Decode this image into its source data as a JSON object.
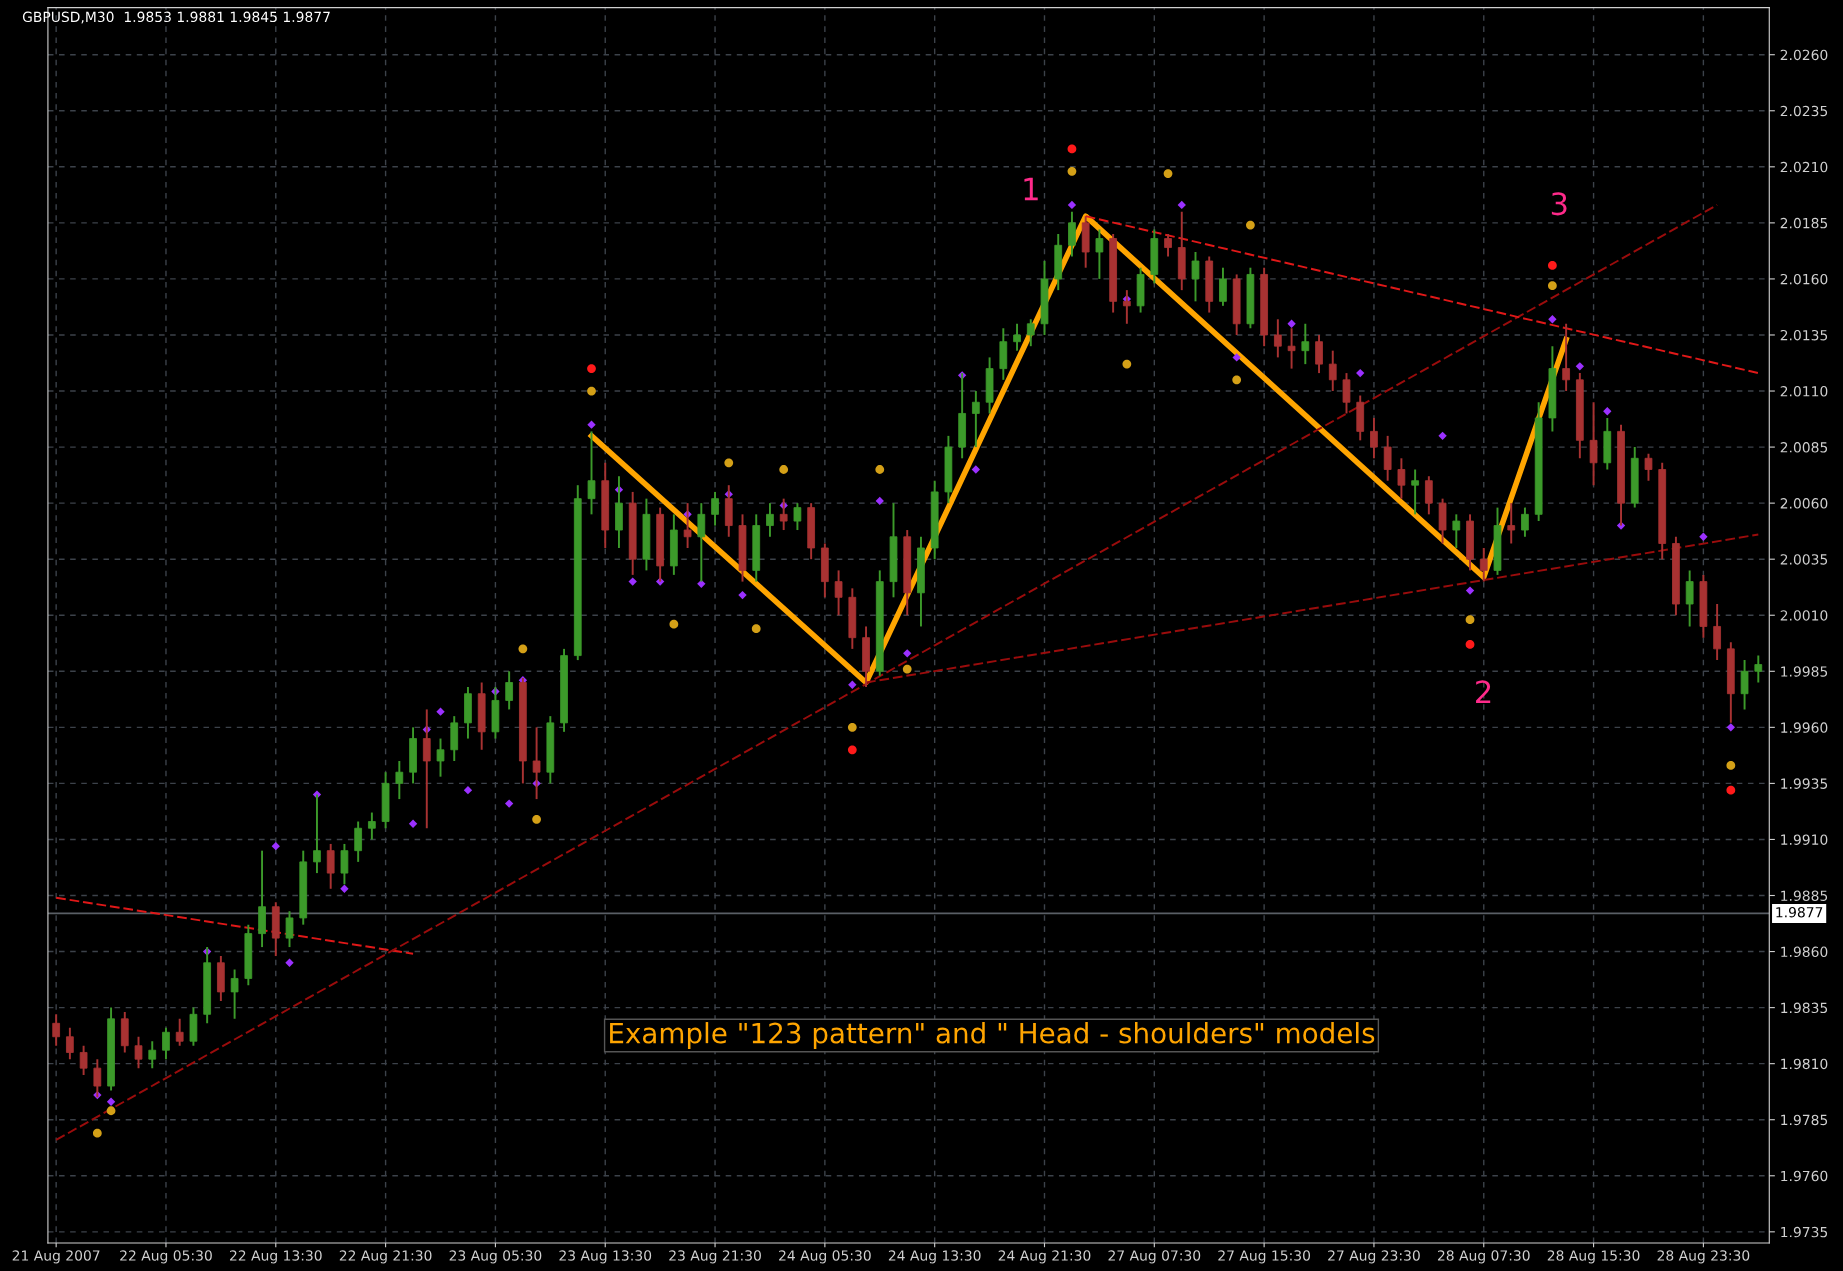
{
  "chart_data": {
    "type": "candlestick",
    "categories": [
      "21 Aug 2007",
      null,
      null,
      null,
      null,
      null,
      null,
      null,
      "22 Aug 05:30",
      null,
      null,
      null,
      null,
      null,
      null,
      null,
      "22 Aug 13:30",
      null,
      null,
      null,
      null,
      null,
      null,
      null,
      "22 Aug 21:30",
      null,
      null,
      null,
      null,
      null,
      null,
      null,
      "23 Aug 05:30",
      null,
      null,
      null,
      null,
      null,
      null,
      null,
      "23 Aug 13:30",
      null,
      null,
      null,
      null,
      null,
      null,
      null,
      "23 Aug 21:30",
      null,
      null,
      null,
      null,
      null,
      null,
      null,
      "24 Aug 05:30",
      null,
      null,
      null,
      null,
      null,
      null,
      null,
      "24 Aug 13:30",
      null,
      null,
      null,
      null,
      null,
      null,
      null,
      "24 Aug 21:30",
      null,
      null,
      null,
      null,
      null,
      null,
      null,
      "27 Aug 07:30",
      null,
      null,
      null,
      null,
      null,
      null,
      null,
      "27 Aug 15:30",
      null,
      null,
      null,
      null,
      null,
      null,
      null,
      "27 Aug 23:30",
      null,
      null,
      null,
      null,
      null,
      null,
      null,
      "28 Aug 07:30",
      null,
      null,
      null,
      null,
      null,
      null,
      null,
      "28 Aug 15:30",
      null,
      null,
      null,
      null,
      null,
      null,
      null,
      "28 Aug 23:30",
      null,
      null,
      null,
      null
    ],
    "ohlc": [
      [
        1.9828,
        1.9832,
        1.9818,
        1.9822
      ],
      [
        1.9822,
        1.9826,
        1.9812,
        1.9815
      ],
      [
        1.9815,
        1.9818,
        1.9805,
        1.9808
      ],
      [
        1.9808,
        1.9812,
        1.9795,
        1.98
      ],
      [
        1.98,
        1.9835,
        1.9798,
        1.983
      ],
      [
        1.983,
        1.9833,
        1.9815,
        1.9818
      ],
      [
        1.9818,
        1.9822,
        1.9808,
        1.9812
      ],
      [
        1.9812,
        1.982,
        1.9808,
        1.9816
      ],
      [
        1.9816,
        1.9826,
        1.9812,
        1.9824
      ],
      [
        1.9824,
        1.983,
        1.9818,
        1.982
      ],
      [
        1.982,
        1.9835,
        1.9818,
        1.9832
      ],
      [
        1.9832,
        1.9862,
        1.9828,
        1.9855
      ],
      [
        1.9855,
        1.9858,
        1.9838,
        1.9842
      ],
      [
        1.9842,
        1.9852,
        1.983,
        1.9848
      ],
      [
        1.9848,
        1.9872,
        1.9845,
        1.9868
      ],
      [
        1.9868,
        1.9905,
        1.9862,
        1.988
      ],
      [
        1.988,
        1.9882,
        1.9858,
        1.9866
      ],
      [
        1.9866,
        1.9878,
        1.9862,
        1.9875
      ],
      [
        1.9875,
        1.9905,
        1.9872,
        1.99
      ],
      [
        1.99,
        1.993,
        1.9895,
        1.9905
      ],
      [
        1.9905,
        1.9908,
        1.9888,
        1.9895
      ],
      [
        1.9895,
        1.9908,
        1.989,
        1.9905
      ],
      [
        1.9905,
        1.9918,
        1.99,
        1.9915
      ],
      [
        1.9915,
        1.9922,
        1.991,
        1.9918
      ],
      [
        1.9918,
        1.994,
        1.9915,
        1.9935
      ],
      [
        1.9935,
        1.9945,
        1.9928,
        1.994
      ],
      [
        1.994,
        1.996,
        1.9935,
        1.9955
      ],
      [
        1.9955,
        1.9968,
        1.9915,
        1.9945
      ],
      [
        1.9945,
        1.9955,
        1.9938,
        1.995
      ],
      [
        1.995,
        1.9965,
        1.9945,
        1.9962
      ],
      [
        1.9962,
        1.9978,
        1.9955,
        1.9975
      ],
      [
        1.9975,
        1.998,
        1.995,
        1.9958
      ],
      [
        1.9958,
        1.9978,
        1.9955,
        1.9972
      ],
      [
        1.9972,
        1.9985,
        1.9968,
        1.998
      ],
      [
        1.998,
        1.9982,
        1.9935,
        1.9945
      ],
      [
        1.9945,
        1.996,
        1.9928,
        1.994
      ],
      [
        1.994,
        1.9965,
        1.9935,
        1.9962
      ],
      [
        1.9962,
        1.9995,
        1.9958,
        1.9992
      ],
      [
        1.9992,
        2.0068,
        1.999,
        2.0062
      ],
      [
        2.0062,
        2.0092,
        2.0055,
        2.007
      ],
      [
        2.007,
        2.0078,
        2.004,
        2.0048
      ],
      [
        2.0048,
        2.0072,
        2.004,
        2.006
      ],
      [
        2.006,
        2.0065,
        2.0028,
        2.0035
      ],
      [
        2.0035,
        2.0062,
        2.003,
        2.0055
      ],
      [
        2.0055,
        2.0058,
        2.0025,
        2.0032
      ],
      [
        2.0032,
        2.0055,
        2.0028,
        2.0048
      ],
      [
        2.0048,
        2.006,
        2.004,
        2.0045
      ],
      [
        2.0045,
        2.006,
        2.0025,
        2.0055
      ],
      [
        2.0055,
        2.0065,
        2.005,
        2.0062
      ],
      [
        2.0062,
        2.0068,
        2.0045,
        2.005
      ],
      [
        2.005,
        2.0055,
        2.0025,
        2.003
      ],
      [
        2.003,
        2.0055,
        2.0025,
        2.005
      ],
      [
        2.005,
        2.006,
        2.0045,
        2.0055
      ],
      [
        2.0055,
        2.0062,
        2.0048,
        2.0052
      ],
      [
        2.0052,
        2.006,
        2.0048,
        2.0058
      ],
      [
        2.0058,
        2.006,
        2.0035,
        2.004
      ],
      [
        2.004,
        2.0042,
        2.0018,
        2.0025
      ],
      [
        2.0025,
        2.003,
        2.001,
        2.0018
      ],
      [
        2.0018,
        2.0022,
        1.9995,
        2.0
      ],
      [
        2.0,
        2.0005,
        1.9978,
        1.9985
      ],
      [
        1.9985,
        2.003,
        1.9983,
        2.0025
      ],
      [
        2.0025,
        2.006,
        2.0018,
        2.0045
      ],
      [
        2.0045,
        2.0048,
        2.001,
        2.002
      ],
      [
        2.002,
        2.0045,
        2.0005,
        2.004
      ],
      [
        2.004,
        2.007,
        2.0035,
        2.0065
      ],
      [
        2.0065,
        2.009,
        2.006,
        2.0085
      ],
      [
        2.0085,
        2.0118,
        2.008,
        2.01
      ],
      [
        2.01,
        2.011,
        2.0085,
        2.0105
      ],
      [
        2.0105,
        2.0125,
        2.01,
        2.012
      ],
      [
        2.012,
        2.0138,
        2.0115,
        2.0132
      ],
      [
        2.0132,
        2.014,
        2.0128,
        2.0135
      ],
      [
        2.0135,
        2.0142,
        2.013,
        2.014
      ],
      [
        2.014,
        2.0168,
        2.0135,
        2.016
      ],
      [
        2.016,
        2.018,
        2.0155,
        2.0175
      ],
      [
        2.0175,
        2.019,
        2.017,
        2.0185
      ],
      [
        2.0185,
        2.0188,
        2.0165,
        2.0172
      ],
      [
        2.0172,
        2.0182,
        2.016,
        2.0178
      ],
      [
        2.0178,
        2.018,
        2.0145,
        2.015
      ],
      [
        2.015,
        2.0155,
        2.014,
        2.0148
      ],
      [
        2.0148,
        2.0165,
        2.0145,
        2.0162
      ],
      [
        2.0162,
        2.0182,
        2.0158,
        2.0178
      ],
      [
        2.0178,
        2.018,
        2.017,
        2.0174
      ],
      [
        2.0174,
        2.019,
        2.0155,
        2.016
      ],
      [
        2.016,
        2.0172,
        2.015,
        2.0168
      ],
      [
        2.0168,
        2.017,
        2.0145,
        2.015
      ],
      [
        2.015,
        2.0165,
        2.0148,
        2.016
      ],
      [
        2.016,
        2.0162,
        2.0135,
        2.014
      ],
      [
        2.014,
        2.0165,
        2.0138,
        2.0162
      ],
      [
        2.0162,
        2.0165,
        2.013,
        2.0135
      ],
      [
        2.0135,
        2.0142,
        2.0125,
        2.013
      ],
      [
        2.013,
        2.0138,
        2.012,
        2.0128
      ],
      [
        2.0128,
        2.014,
        2.0122,
        2.0132
      ],
      [
        2.0132,
        2.0135,
        2.0118,
        2.0122
      ],
      [
        2.0122,
        2.0128,
        2.011,
        2.0115
      ],
      [
        2.0115,
        2.0118,
        2.01,
        2.0105
      ],
      [
        2.0105,
        2.0108,
        2.0088,
        2.0092
      ],
      [
        2.0092,
        2.0098,
        2.008,
        2.0085
      ],
      [
        2.0085,
        2.009,
        2.007,
        2.0075
      ],
      [
        2.0075,
        2.008,
        2.0062,
        2.0068
      ],
      [
        2.0068,
        2.0075,
        2.0055,
        2.007
      ],
      [
        2.007,
        2.0072,
        2.0055,
        2.006
      ],
      [
        2.006,
        2.0062,
        2.0042,
        2.0048
      ],
      [
        2.0048,
        2.0055,
        2.004,
        2.0052
      ],
      [
        2.0052,
        2.0055,
        2.003,
        2.0035
      ],
      [
        2.0035,
        2.004,
        2.0025,
        2.003
      ],
      [
        2.003,
        2.0058,
        2.0028,
        2.005
      ],
      [
        2.005,
        2.006,
        2.0042,
        2.0048
      ],
      [
        2.0048,
        2.0058,
        2.0045,
        2.0055
      ],
      [
        2.0055,
        2.0105,
        2.0052,
        2.0098
      ],
      [
        2.0098,
        2.013,
        2.0092,
        2.012
      ],
      [
        2.012,
        2.014,
        2.011,
        2.0115
      ],
      [
        2.0115,
        2.0118,
        2.008,
        2.0088
      ],
      [
        2.0088,
        2.0105,
        2.0068,
        2.0078
      ],
      [
        2.0078,
        2.0098,
        2.0075,
        2.0092
      ],
      [
        2.0092,
        2.0095,
        2.005,
        2.006
      ],
      [
        2.006,
        2.0085,
        2.0058,
        2.008
      ],
      [
        2.008,
        2.0082,
        2.007,
        2.0075
      ],
      [
        2.0075,
        2.0078,
        2.0035,
        2.0042
      ],
      [
        2.0042,
        2.0045,
        2.001,
        2.0015
      ],
      [
        2.0015,
        2.003,
        2.0005,
        2.0025
      ],
      [
        2.0025,
        2.0028,
        2.0,
        2.0005
      ],
      [
        2.0005,
        2.0015,
        1.999,
        1.9995
      ],
      [
        1.9995,
        1.9998,
        1.9962,
        1.9975
      ],
      [
        1.9975,
        1.999,
        1.9968,
        1.9985
      ],
      [
        1.9985,
        1.9992,
        1.998,
        1.9988
      ]
    ],
    "colors": [
      "#a83232",
      "#a83232",
      "#a83232",
      "#a83232",
      "#3c9a2a",
      "#a83232",
      "#a83232",
      "#3c9a2a",
      "#3c9a2a",
      "#a83232",
      "#3c9a2a",
      "#3c9a2a",
      "#a83232",
      "#3c9a2a",
      "#3c9a2a",
      "#3c9a2a",
      "#a83232",
      "#3c9a2a",
      "#3c9a2a",
      "#3c9a2a",
      "#a83232",
      "#3c9a2a",
      "#3c9a2a",
      "#3c9a2a",
      "#3c9a2a",
      "#3c9a2a",
      "#3c9a2a",
      "#a83232",
      "#3c9a2a",
      "#3c9a2a",
      "#3c9a2a",
      "#a83232",
      "#3c9a2a",
      "#3c9a2a",
      "#a83232",
      "#a83232",
      "#3c9a2a",
      "#3c9a2a",
      "#3c9a2a",
      "#3c9a2a",
      "#a83232",
      "#3c9a2a",
      "#a83232",
      "#3c9a2a",
      "#a83232",
      "#3c9a2a",
      "#a83232",
      "#3c9a2a",
      "#3c9a2a",
      "#a83232",
      "#a83232",
      "#3c9a2a",
      "#3c9a2a",
      "#a83232",
      "#3c9a2a",
      "#a83232",
      "#a83232",
      "#a83232",
      "#a83232",
      "#a83232",
      "#3c9a2a",
      "#3c9a2a",
      "#a83232",
      "#3c9a2a",
      "#3c9a2a",
      "#3c9a2a",
      "#3c9a2a",
      "#3c9a2a",
      "#3c9a2a",
      "#3c9a2a",
      "#3c9a2a",
      "#3c9a2a",
      "#3c9a2a",
      "#3c9a2a",
      "#3c9a2a",
      "#a83232",
      "#3c9a2a",
      "#a83232",
      "#a83232",
      "#3c9a2a",
      "#3c9a2a",
      "#a83232",
      "#a83232",
      "#3c9a2a",
      "#a83232",
      "#3c9a2a",
      "#a83232",
      "#3c9a2a",
      "#a83232",
      "#a83232",
      "#a83232",
      "#3c9a2a",
      "#a83232",
      "#a83232",
      "#a83232",
      "#a83232",
      "#a83232",
      "#a83232",
      "#a83232",
      "#3c9a2a",
      "#a83232",
      "#a83232",
      "#3c9a2a",
      "#a83232",
      "#a83232",
      "#3c9a2a",
      "#a83232",
      "#3c9a2a",
      "#3c9a2a",
      "#3c9a2a",
      "#a83232",
      "#a83232",
      "#a83232",
      "#3c9a2a",
      "#a83232",
      "#3c9a2a",
      "#a83232",
      "#a83232",
      "#a83232",
      "#3c9a2a",
      "#a83232",
      "#a83232",
      "#a83232",
      "#3c9a2a",
      "#3c9a2a"
    ],
    "series": [
      {
        "type": "line",
        "color": "#ffa500",
        "line_style": "solid",
        "marker": "none",
        "values": [
          null,
          null,
          null,
          null,
          null,
          null,
          null,
          null,
          null,
          null,
          null,
          null,
          null,
          null,
          null,
          null,
          null,
          null,
          null,
          null,
          null,
          null,
          null,
          null,
          null,
          null,
          null,
          null,
          null,
          null,
          null,
          null,
          null,
          null,
          null,
          null,
          null,
          null,
          null,
          2.009,
          null,
          null,
          null,
          null,
          null,
          null,
          null,
          null,
          null,
          null,
          null,
          null,
          null,
          null,
          null,
          null,
          null,
          null,
          null,
          1.998,
          null,
          null,
          null,
          null,
          null,
          null,
          null,
          null,
          null,
          null,
          null,
          null,
          null,
          null,
          null,
          2.0188,
          null,
          null,
          null,
          null,
          null,
          null,
          null,
          null,
          null,
          null,
          null,
          null,
          null,
          null,
          null,
          null,
          null,
          null,
          null,
          null,
          null,
          null,
          null,
          null,
          null,
          null,
          null,
          null,
          2.0027,
          null,
          null,
          null,
          null,
          null,
          2.0133,
          null,
          null,
          null,
          null,
          null,
          null,
          null,
          null,
          null,
          null,
          null,
          null,
          null,
          null
        ]
      },
      {
        "type": "line",
        "color": "#e01818",
        "line_style": "dashed",
        "marker": "none",
        "values": [
          1.9884,
          null,
          null,
          null,
          null,
          null,
          null,
          null,
          null,
          null,
          null,
          null,
          null,
          null,
          null,
          null,
          null,
          null,
          null,
          null,
          null,
          null,
          null,
          null,
          null,
          null,
          1.9859,
          null,
          null,
          null,
          null,
          null,
          null,
          null,
          null,
          null,
          null,
          null,
          null,
          null,
          null,
          null,
          null,
          null,
          null,
          null,
          null,
          null,
          null,
          null,
          null,
          null,
          null,
          null,
          null,
          null,
          null,
          null,
          null,
          null,
          null,
          null,
          null,
          null,
          null,
          null,
          null,
          null,
          null,
          null,
          null,
          null,
          null,
          null,
          null,
          null,
          null,
          null,
          null,
          null,
          null,
          null,
          null,
          null,
          null,
          null,
          null,
          null,
          null,
          null,
          null,
          null,
          null,
          null,
          null,
          null,
          null,
          null,
          null,
          null,
          null,
          null,
          null,
          null,
          null,
          null,
          null,
          null,
          null,
          null,
          null,
          null,
          null,
          null,
          null,
          null,
          null,
          null,
          null,
          null,
          null,
          null,
          null,
          null,
          null
        ]
      },
      {
        "type": "line",
        "color": "#9a0c0c",
        "line_style": "dashed",
        "marker": "none",
        "values": [
          1.9776,
          null,
          null,
          null,
          null,
          null,
          null,
          null,
          null,
          null,
          null,
          null,
          null,
          null,
          null,
          null,
          null,
          null,
          null,
          null,
          null,
          null,
          null,
          null,
          null,
          null,
          null,
          null,
          null,
          null,
          null,
          null,
          null,
          null,
          null,
          null,
          null,
          null,
          null,
          null,
          null,
          null,
          null,
          null,
          null,
          null,
          null,
          null,
          null,
          null,
          null,
          null,
          null,
          null,
          null,
          null,
          null,
          null,
          null,
          null,
          null,
          null,
          null,
          null,
          null,
          null,
          null,
          null,
          null,
          null,
          null,
          null,
          null,
          null,
          null,
          null,
          null,
          null,
          null,
          null,
          null,
          null,
          null,
          null,
          null,
          null,
          null,
          null,
          null,
          null,
          null,
          null,
          null,
          null,
          null,
          null,
          null,
          null,
          null,
          null,
          null,
          null,
          null,
          null,
          null,
          null,
          null,
          null,
          null,
          null,
          null,
          null,
          null,
          null,
          null,
          null,
          null,
          null,
          null,
          null,
          null,
          2.0193,
          null,
          null,
          null
        ]
      },
      {
        "type": "line",
        "color": "#9a0c0c",
        "line_style": "dashed",
        "marker": "none",
        "values": [
          null,
          null,
          null,
          null,
          null,
          null,
          null,
          null,
          null,
          null,
          null,
          null,
          null,
          null,
          null,
          null,
          null,
          null,
          null,
          null,
          null,
          null,
          null,
          null,
          null,
          null,
          null,
          null,
          null,
          null,
          null,
          null,
          null,
          null,
          null,
          null,
          null,
          null,
          null,
          null,
          null,
          null,
          null,
          null,
          null,
          null,
          null,
          null,
          null,
          null,
          null,
          null,
          null,
          null,
          null,
          null,
          null,
          null,
          null,
          1.998,
          null,
          null,
          null,
          null,
          null,
          null,
          null,
          null,
          null,
          null,
          null,
          null,
          null,
          null,
          null,
          null,
          null,
          null,
          null,
          null,
          null,
          null,
          null,
          null,
          null,
          null,
          null,
          null,
          null,
          null,
          null,
          null,
          null,
          null,
          null,
          null,
          null,
          null,
          null,
          null,
          null,
          null,
          null,
          null,
          null,
          null,
          null,
          null,
          null,
          null,
          null,
          null,
          null,
          null,
          null,
          null,
          null,
          null,
          null,
          null,
          null,
          null,
          null,
          null,
          2.0046
        ]
      },
      {
        "type": "line",
        "color": "#e01818",
        "line_style": "dashed",
        "marker": "none",
        "values": [
          null,
          null,
          null,
          null,
          null,
          null,
          null,
          null,
          null,
          null,
          null,
          null,
          null,
          null,
          null,
          null,
          null,
          null,
          null,
          null,
          null,
          null,
          null,
          null,
          null,
          null,
          null,
          null,
          null,
          null,
          null,
          null,
          null,
          null,
          null,
          null,
          null,
          null,
          null,
          null,
          null,
          null,
          null,
          null,
          null,
          null,
          null,
          null,
          null,
          null,
          null,
          null,
          null,
          null,
          null,
          null,
          null,
          null,
          null,
          null,
          null,
          null,
          null,
          null,
          null,
          null,
          null,
          null,
          null,
          null,
          null,
          null,
          null,
          null,
          null,
          2.0188,
          null,
          null,
          null,
          null,
          null,
          null,
          null,
          null,
          null,
          null,
          null,
          null,
          null,
          null,
          null,
          null,
          null,
          null,
          null,
          null,
          null,
          null,
          null,
          null,
          null,
          null,
          null,
          null,
          null,
          null,
          null,
          null,
          null,
          null,
          null,
          null,
          null,
          null,
          null,
          null,
          null,
          null,
          null,
          null,
          null,
          null,
          null,
          null,
          2.0118
        ]
      },
      {
        "type": "scatter",
        "color": "#9b30ff",
        "marker": "diamond",
        "values": [
          null,
          null,
          null,
          1.9796,
          1.9793,
          null,
          null,
          null,
          null,
          null,
          null,
          1.986,
          null,
          null,
          null,
          null,
          1.9907,
          1.9855,
          null,
          1.993,
          null,
          1.9888,
          null,
          null,
          null,
          null,
          1.9917,
          1.9959,
          1.9967,
          null,
          1.9932,
          null,
          1.9976,
          1.9926,
          1.9981,
          1.9935,
          null,
          null,
          null,
          2.0095,
          null,
          2.0066,
          2.0025,
          null,
          2.0025,
          null,
          2.0055,
          2.0024,
          null,
          2.0064,
          2.0019,
          null,
          null,
          2.0059,
          null,
          null,
          null,
          null,
          1.9979,
          null,
          2.0061,
          null,
          1.9993,
          null,
          null,
          null,
          2.0117,
          2.0075,
          null,
          null,
          null,
          null,
          null,
          null,
          2.0193,
          null,
          null,
          null,
          2.0151,
          null,
          null,
          null,
          2.0193,
          null,
          null,
          null,
          2.0125,
          null,
          null,
          null,
          2.014,
          null,
          null,
          null,
          null,
          2.0118,
          null,
          null,
          null,
          null,
          null,
          2.009,
          null,
          2.0021,
          null,
          null,
          null,
          null,
          null,
          2.0142,
          null,
          2.0121,
          null,
          2.0101,
          2.005,
          null,
          null,
          null,
          null,
          null,
          2.0045,
          null,
          1.996,
          null,
          null
        ]
      },
      {
        "type": "scatter",
        "color": "#d4a017",
        "marker": "circle",
        "values": [
          null,
          null,
          null,
          1.9779,
          1.9789,
          null,
          null,
          null,
          null,
          null,
          null,
          null,
          null,
          null,
          null,
          null,
          null,
          null,
          null,
          null,
          null,
          null,
          null,
          null,
          null,
          null,
          null,
          null,
          null,
          null,
          null,
          null,
          null,
          null,
          1.9995,
          1.9919,
          null,
          null,
          null,
          2.011,
          null,
          null,
          null,
          null,
          null,
          2.0006,
          null,
          null,
          null,
          2.0078,
          null,
          2.0004,
          null,
          2.0075,
          null,
          null,
          null,
          null,
          1.996,
          null,
          2.0075,
          null,
          1.9986,
          null,
          null,
          null,
          null,
          null,
          null,
          null,
          null,
          null,
          null,
          null,
          2.0208,
          null,
          null,
          null,
          2.0122,
          null,
          null,
          2.0207,
          null,
          null,
          null,
          null,
          2.0115,
          2.0184,
          null,
          null,
          null,
          null,
          null,
          null,
          null,
          null,
          null,
          null,
          null,
          null,
          null,
          null,
          null,
          2.0008,
          null,
          null,
          null,
          null,
          null,
          2.0157,
          null,
          null,
          null,
          null,
          null,
          null,
          null,
          null,
          null,
          null,
          null,
          null,
          1.9943,
          null,
          null
        ]
      },
      {
        "type": "scatter",
        "color": "#ff1a1a",
        "marker": "circle",
        "values": [
          null,
          null,
          null,
          null,
          null,
          null,
          null,
          null,
          null,
          null,
          null,
          null,
          null,
          null,
          null,
          null,
          null,
          null,
          null,
          null,
          null,
          null,
          null,
          null,
          null,
          null,
          null,
          null,
          null,
          null,
          null,
          null,
          null,
          null,
          null,
          null,
          null,
          null,
          null,
          2.012,
          null,
          null,
          null,
          null,
          null,
          null,
          null,
          null,
          null,
          null,
          null,
          null,
          null,
          null,
          null,
          null,
          null,
          null,
          1.995,
          null,
          null,
          null,
          null,
          null,
          null,
          null,
          null,
          null,
          null,
          null,
          null,
          null,
          null,
          null,
          2.0218,
          null,
          null,
          null,
          null,
          null,
          null,
          null,
          null,
          null,
          null,
          null,
          null,
          null,
          null,
          null,
          null,
          null,
          null,
          null,
          null,
          null,
          null,
          null,
          null,
          null,
          null,
          null,
          null,
          1.9997,
          null,
          null,
          null,
          null,
          null,
          2.0166,
          null,
          null,
          null,
          null,
          null,
          null,
          null,
          null,
          null,
          null,
          null,
          null,
          1.9932,
          null,
          null
        ]
      }
    ],
    "ylim": [
      1.973,
      2.0281
    ],
    "yticks": [
      {
        "value": 1.9735,
        "label": "1.9735"
      },
      {
        "value": 1.976,
        "label": "1.9760"
      },
      {
        "value": 1.9785,
        "label": "1.9785"
      },
      {
        "value": 1.981,
        "label": "1.9810"
      },
      {
        "value": 1.9835,
        "label": "1.9835"
      },
      {
        "value": 1.986,
        "label": "1.9860"
      },
      {
        "value": 1.9885,
        "label": "1.9885"
      },
      {
        "value": 1.991,
        "label": "1.9910"
      },
      {
        "value": 1.9935,
        "label": "1.9935"
      },
      {
        "value": 1.996,
        "label": "1.9960"
      },
      {
        "value": 1.9985,
        "label": "1.9985"
      },
      {
        "value": 2.001,
        "label": "2.0010"
      },
      {
        "value": 2.0035,
        "label": "2.0035"
      },
      {
        "value": 2.006,
        "label": "2.0060"
      },
      {
        "value": 2.0085,
        "label": "2.0085"
      },
      {
        "value": 2.011,
        "label": "2.0110"
      },
      {
        "value": 2.0135,
        "label": "2.0135"
      },
      {
        "value": 2.016,
        "label": "2.0160"
      },
      {
        "value": 2.0185,
        "label": "2.0185"
      },
      {
        "value": 2.021,
        "label": "2.0210"
      },
      {
        "value": 2.0235,
        "label": "2.0235"
      },
      {
        "value": 2.026,
        "label": "2.0260"
      }
    ],
    "grid": true,
    "ref_lines": [
      {
        "axis": "y",
        "value": 1.9877,
        "label": "1.9877",
        "color": "#5a5f66",
        "line_style": "solid"
      }
    ],
    "annotations": [
      "GBPUSD,M30  1.9853 1.9881 1.9845 1.9877",
      "Example \"123 pattern\" and \" Head - shoulders\" models",
      "1",
      "2",
      "3"
    ]
  }
}
